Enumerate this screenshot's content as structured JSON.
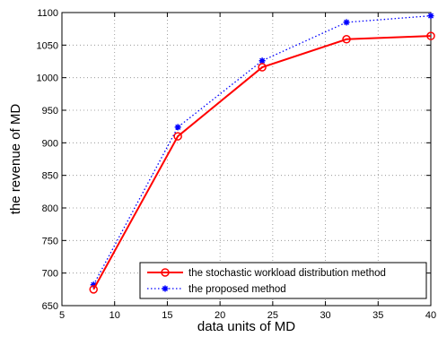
{
  "chart_data": {
    "type": "line",
    "title": "",
    "xlabel": "data units of MD",
    "ylabel": "the revenue of MD",
    "xlim": [
      5,
      40
    ],
    "ylim": [
      650,
      1100
    ],
    "xticks": [
      5,
      10,
      15,
      20,
      25,
      30,
      35,
      40
    ],
    "yticks": [
      650,
      700,
      750,
      800,
      850,
      900,
      950,
      1000,
      1050,
      1100
    ],
    "x": [
      8,
      16,
      24,
      32,
      40
    ],
    "grid": true,
    "legend_position": "bottom-right",
    "series": [
      {
        "name": "the stochastic workload distribution method",
        "values": [
          675,
          910,
          1016,
          1059,
          1064
        ],
        "color": "#ff0000",
        "line_style": "solid",
        "marker": "circle"
      },
      {
        "name": "the proposed method",
        "values": [
          682,
          924,
          1026,
          1085,
          1095
        ],
        "color": "#0000ff",
        "line_style": "dotted",
        "marker": "star"
      }
    ]
  }
}
